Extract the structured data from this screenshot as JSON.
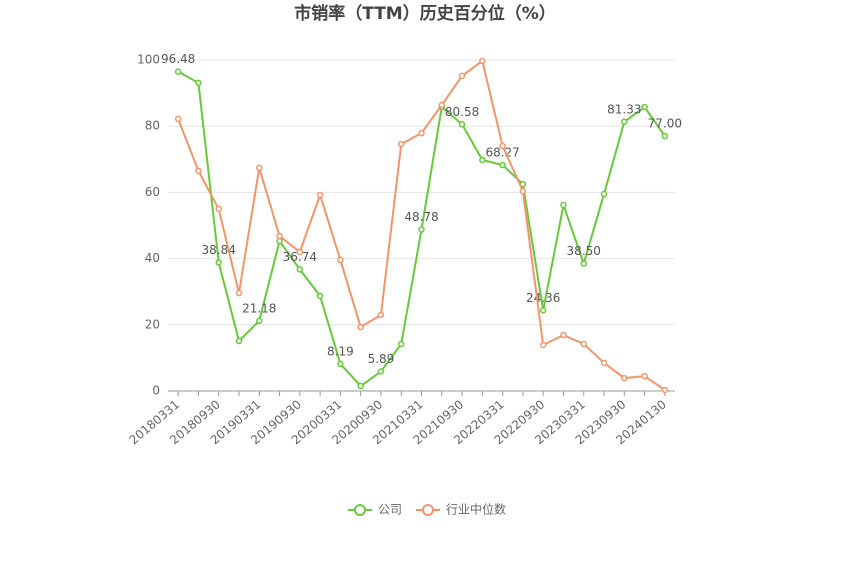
{
  "chart_data": {
    "type": "line",
    "title": "市销率（TTM）历史百分位（%）",
    "categories": [
      "20180331",
      null,
      "20180930",
      null,
      "20190331",
      null,
      "20190930",
      null,
      "20200331",
      null,
      "20200930",
      null,
      "20210331",
      null,
      "20210930",
      null,
      "20220331",
      null,
      "20220930",
      null,
      "20230331",
      null,
      "20230930",
      null,
      "20240130"
    ],
    "series": [
      {
        "name": "公司",
        "color": "#67c93a",
        "values": [
          96.48,
          93.1,
          38.84,
          15.1,
          21.18,
          45.3,
          36.74,
          28.7,
          8.19,
          1.5,
          5.89,
          14.2,
          48.78,
          85.8,
          80.58,
          69.8,
          68.27,
          62.5,
          24.36,
          56.2,
          38.5,
          59.5,
          81.33,
          85.8,
          77.0
        ],
        "value_labels": [
          "96.48",
          null,
          "38.84",
          null,
          "21.18",
          null,
          "36.74",
          null,
          "8.19",
          null,
          "5.89",
          null,
          "48.78",
          null,
          "80.58",
          null,
          "68.27",
          null,
          "24.36",
          null,
          "38.50",
          null,
          "81.33",
          null,
          "77.00"
        ]
      },
      {
        "name": "行业中位数",
        "color": "#f2956a",
        "values": [
          82.2,
          66.5,
          55.0,
          29.6,
          67.4,
          46.8,
          42.0,
          59.2,
          39.6,
          19.3,
          23.0,
          74.6,
          77.9,
          86.4,
          95.2,
          99.7,
          74.0,
          60.4,
          13.9,
          16.9,
          14.2,
          8.5,
          3.9,
          4.5,
          0.3
        ]
      }
    ],
    "ylim": [
      0,
      100
    ],
    "yticks": [
      0,
      20,
      40,
      60,
      80,
      100
    ],
    "grid": true,
    "legend": "bottom"
  }
}
